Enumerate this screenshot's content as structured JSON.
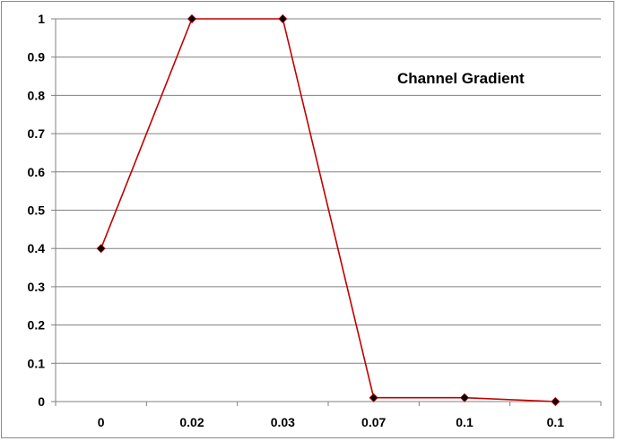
{
  "chart_data": {
    "type": "line",
    "annotation": "Channel Gradient",
    "categories": [
      "0",
      "0.02",
      "0.03",
      "0.07",
      "0.1",
      "0.1"
    ],
    "series": [
      {
        "values": [
          0.4,
          1,
          1,
          0.01,
          0.01,
          0
        ]
      }
    ],
    "ylim": [
      0,
      1
    ],
    "yticks": [
      "0",
      "0.1",
      "0.2",
      "0.3",
      "0.4",
      "0.5",
      "0.6",
      "0.7",
      "0.8",
      "0.9",
      "1"
    ],
    "grid": true,
    "colors": {
      "line": "#c00000",
      "marker": "#000000",
      "grid": "#808080"
    }
  }
}
